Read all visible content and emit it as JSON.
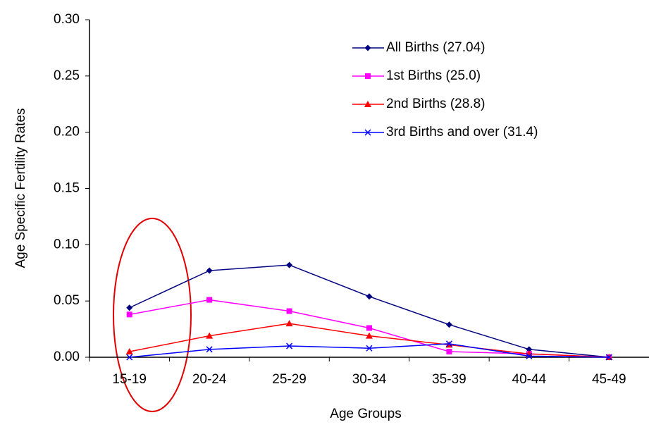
{
  "chart_data": {
    "type": "line",
    "x_label": "Age Groups",
    "y_label": "Age Specific Fertility Rates",
    "categories": [
      "15-19",
      "20-24",
      "25-29",
      "30-34",
      "35-39",
      "40-44",
      "45-49"
    ],
    "series": [
      {
        "name": "All Births (27.04)",
        "color": "#000080",
        "marker": "diamond",
        "values": [
          0.044,
          0.077,
          0.082,
          0.054,
          0.029,
          0.007,
          0.0
        ]
      },
      {
        "name": "1st Births (25.0)",
        "color": "#ff00ff",
        "marker": "square",
        "values": [
          0.038,
          0.051,
          0.041,
          0.026,
          0.005,
          0.003,
          0.0
        ]
      },
      {
        "name": "2nd Births (28.8)",
        "color": "#ff0000",
        "marker": "triangle",
        "values": [
          0.005,
          0.019,
          0.03,
          0.019,
          0.011,
          0.003,
          0.0
        ]
      },
      {
        "name": "3rd Births and over (31.4)",
        "color": "#0000ff",
        "marker": "x",
        "values": [
          0.0,
          0.007,
          0.01,
          0.008,
          0.012,
          0.001,
          0.0
        ]
      }
    ],
    "ylim": [
      0,
      0.3
    ],
    "yticks": [
      {
        "value": 0,
        "label": "0.00"
      },
      {
        "value": 0.05,
        "label": "0.05"
      },
      {
        "value": 0.1,
        "label": "0.10"
      },
      {
        "value": 0.15,
        "label": "0.15"
      },
      {
        "value": 0.2,
        "label": "0.20"
      },
      {
        "value": 0.25,
        "label": "0.25"
      },
      {
        "value": 0.3,
        "label": "0.30"
      }
    ]
  }
}
